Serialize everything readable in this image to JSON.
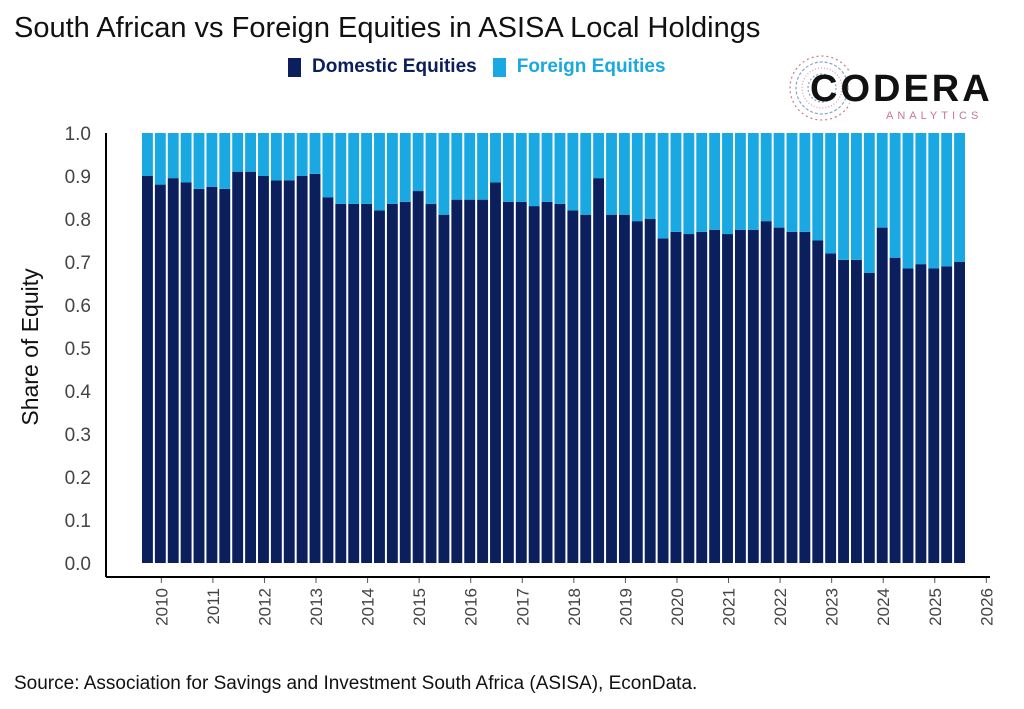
{
  "brand": {
    "name": "CODERA",
    "tagline": "ANALYTICS",
    "colors": {
      "domestic": "#0a1f5c",
      "foreign": "#1aa8e2",
      "logo_accent": "#c87890"
    }
  },
  "footer": {
    "source": "Source: Association for Savings and Investment South Africa (ASISA), EconData."
  },
  "chart_data": {
    "type": "bar",
    "stacked": true,
    "title": "South African vs Foreign Equities in ASISA Local Holdings",
    "ylabel": "Share of Equity",
    "xlabel": "",
    "ylim": [
      0,
      1
    ],
    "yticks": [
      "0.0",
      "0.1",
      "0.2",
      "0.3",
      "0.4",
      "0.5",
      "0.6",
      "0.7",
      "0.8",
      "0.9",
      "1.0"
    ],
    "xticks": [
      "2010",
      "2011",
      "2012",
      "2013",
      "2014",
      "2015",
      "2016",
      "2017",
      "2018",
      "2019",
      "2020",
      "2021",
      "2022",
      "2023",
      "2024",
      "2025",
      "2026"
    ],
    "x_range": [
      2010,
      2026
    ],
    "x_start": 2009.625,
    "x_step": 0.25,
    "legend_position": "top",
    "grid": false,
    "series": [
      {
        "name": "Domestic Equities",
        "color": "#0a1f5c",
        "values": [
          0.9,
          0.88,
          0.895,
          0.885,
          0.87,
          0.875,
          0.87,
          0.91,
          0.91,
          0.9,
          0.89,
          0.89,
          0.9,
          0.905,
          0.85,
          0.835,
          0.835,
          0.835,
          0.82,
          0.835,
          0.84,
          0.865,
          0.835,
          0.81,
          0.845,
          0.845,
          0.845,
          0.885,
          0.84,
          0.84,
          0.83,
          0.84,
          0.835,
          0.82,
          0.81,
          0.895,
          0.81,
          0.81,
          0.795,
          0.8,
          0.755,
          0.77,
          0.765,
          0.77,
          0.775,
          0.765,
          0.775,
          0.775,
          0.795,
          0.78,
          0.77,
          0.77,
          0.75,
          0.72,
          0.705,
          0.705,
          0.675,
          0.78,
          0.71,
          0.685,
          0.695,
          0.685,
          0.69,
          0.7
        ]
      },
      {
        "name": "Foreign Equities",
        "color": "#1aa8e2",
        "values": [
          0.1,
          0.12,
          0.105,
          0.115,
          0.13,
          0.125,
          0.13,
          0.09,
          0.09,
          0.1,
          0.11,
          0.11,
          0.1,
          0.095,
          0.15,
          0.165,
          0.165,
          0.165,
          0.18,
          0.165,
          0.16,
          0.135,
          0.165,
          0.19,
          0.155,
          0.155,
          0.155,
          0.115,
          0.16,
          0.16,
          0.17,
          0.16,
          0.165,
          0.18,
          0.19,
          0.105,
          0.19,
          0.19,
          0.205,
          0.2,
          0.245,
          0.23,
          0.235,
          0.23,
          0.225,
          0.235,
          0.225,
          0.225,
          0.205,
          0.22,
          0.23,
          0.23,
          0.25,
          0.28,
          0.295,
          0.295,
          0.325,
          0.22,
          0.29,
          0.315,
          0.305,
          0.315,
          0.31,
          0.3
        ]
      }
    ]
  }
}
